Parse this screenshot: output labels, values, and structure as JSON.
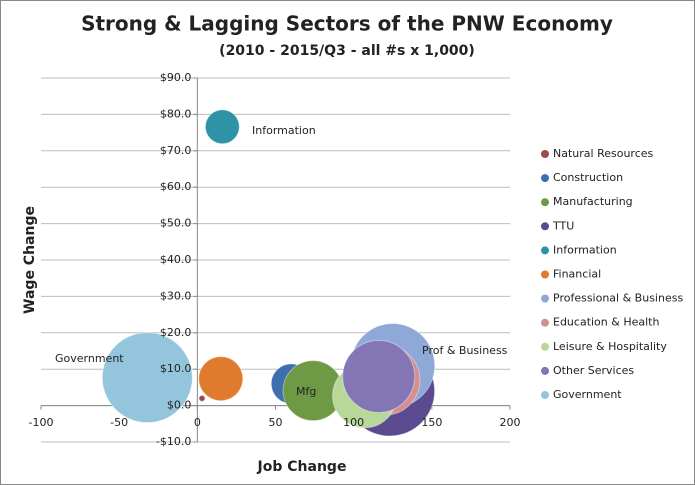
{
  "chart_data": {
    "type": "bubble",
    "title": "Strong & Lagging Sectors of the PNW Economy",
    "subtitle": "(2010 - 2015/Q3 - all #s x 1,000)",
    "x_label": "Job Change",
    "y_label": "Wage Change",
    "xlim": [
      -100,
      200
    ],
    "xticks": [
      -100,
      -50,
      0,
      50,
      100,
      150,
      200
    ],
    "ylim": [
      -10,
      90
    ],
    "yticks": [
      {
        "value": -10,
        "label": "-$10.0"
      },
      {
        "value": 0,
        "label": "$0.0"
      },
      {
        "value": 10,
        "label": "$10.0"
      },
      {
        "value": 20,
        "label": "$20.0"
      },
      {
        "value": 30,
        "label": "$30.0"
      },
      {
        "value": 40,
        "label": "$40.0"
      },
      {
        "value": 50,
        "label": "$50.0"
      },
      {
        "value": 60,
        "label": "$60.0"
      },
      {
        "value": 70,
        "label": "$70.0"
      },
      {
        "value": 80,
        "label": "$80.0"
      },
      {
        "value": 90,
        "label": "$90.0"
      }
    ],
    "grid": true,
    "legend": "right",
    "series": [
      {
        "name": "Natural Resources",
        "color": "#9c4b4b",
        "x": [
          3
        ],
        "values": [
          2
        ],
        "size": [
          1
        ]
      },
      {
        "name": "Construction",
        "color": "#3d6fb0",
        "x": [
          60
        ],
        "values": [
          6
        ],
        "size": [
          44
        ]
      },
      {
        "name": "Manufacturing",
        "color": "#6e9a45",
        "x": [
          74
        ],
        "values": [
          4.1
        ],
        "size": [
          100
        ]
      },
      {
        "name": "TTU",
        "color": "#5b4a8f",
        "x": [
          123
        ],
        "values": [
          4
        ],
        "size": [
          225
        ]
      },
      {
        "name": "Information",
        "color": "#2f93a8",
        "x": [
          16
        ],
        "values": [
          76.6
        ],
        "size": [
          32
        ]
      },
      {
        "name": "Financial",
        "color": "#e07b2e",
        "x": [
          15
        ],
        "values": [
          7.4
        ],
        "size": [
          54
        ]
      },
      {
        "name": "Professional & Business",
        "color": "#8ea8d8",
        "x": [
          125
        ],
        "values": [
          11
        ],
        "size": [
          196
        ]
      },
      {
        "name": "Education & Health",
        "color": "#d48f8f",
        "x": [
          120
        ],
        "values": [
          7
        ],
        "size": [
          136
        ]
      },
      {
        "name": "Leisure & Hospitality",
        "color": "#b8d89a",
        "x": [
          107
        ],
        "values": [
          2.7
        ],
        "size": [
          114
        ]
      },
      {
        "name": "Other Services",
        "color": "#8475b5",
        "x": [
          116
        ],
        "values": [
          8
        ],
        "size": [
          144
        ]
      },
      {
        "name": "Government",
        "color": "#93c6dc",
        "x": [
          -32
        ],
        "values": [
          7.7
        ],
        "size": [
          225
        ]
      }
    ],
    "annotations": [
      "Information",
      "Government",
      "Mfg",
      "Prof & Business"
    ]
  }
}
